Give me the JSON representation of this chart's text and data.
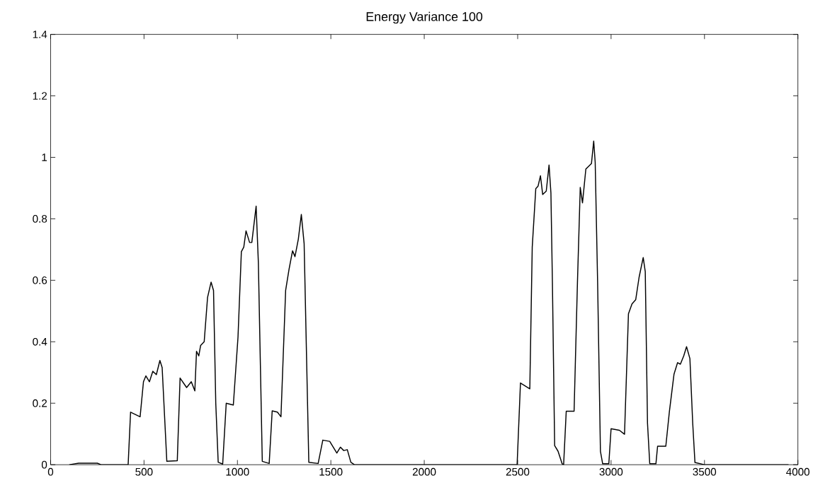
{
  "chart_data": {
    "type": "line",
    "title": "Energy Variance 100",
    "color": "#000000",
    "x": [
      100,
      150,
      250,
      270,
      415,
      428,
      479,
      497,
      510,
      529,
      547,
      566,
      585,
      597,
      622,
      678,
      693,
      728,
      753,
      772,
      781,
      793,
      803,
      822,
      840,
      859,
      872,
      884,
      897,
      921,
      940,
      978,
      1003,
      1021,
      1034,
      1046,
      1065,
      1077,
      1100,
      1112,
      1133,
      1170,
      1186,
      1214,
      1233,
      1258,
      1276,
      1295,
      1308,
      1326,
      1342,
      1357,
      1382,
      1432,
      1457,
      1494,
      1513,
      1532,
      1551,
      1569,
      1588,
      1607,
      1626,
      2497,
      2515,
      2565,
      2578,
      2597,
      2609,
      2622,
      2634,
      2653,
      2668,
      2678,
      2686,
      2698,
      2716,
      2738,
      2746,
      2760,
      2802,
      2820,
      2835,
      2847,
      2865,
      2895,
      2907,
      2915,
      2928,
      2943,
      2955,
      2988,
      3000,
      3045,
      3072,
      3093,
      3112,
      3132,
      3150,
      3172,
      3183,
      3195,
      3207,
      3240,
      3249,
      3293,
      3312,
      3337,
      3356,
      3371,
      3389,
      3404,
      3422,
      3437,
      3449,
      3500,
      3950
    ],
    "values": [
      0,
      0.005,
      0.005,
      0,
      0,
      0.171,
      0.156,
      0.27,
      0.289,
      0.27,
      0.304,
      0.293,
      0.339,
      0.316,
      0.011,
      0.013,
      0.282,
      0.251,
      0.27,
      0.24,
      0.369,
      0.354,
      0.388,
      0.4,
      0.544,
      0.594,
      0.567,
      0.2,
      0.008,
      0.002,
      0.2,
      0.194,
      0.415,
      0.693,
      0.708,
      0.761,
      0.723,
      0.723,
      0.841,
      0.658,
      0.011,
      0.004,
      0.175,
      0.171,
      0.156,
      0.567,
      0.635,
      0.696,
      0.677,
      0.734,
      0.814,
      0.719,
      0.008,
      0.004,
      0.08,
      0.076,
      0.057,
      0.038,
      0.057,
      0.046,
      0.049,
      0.008,
      0,
      0,
      0.266,
      0.247,
      0.708,
      0.898,
      0.906,
      0.94,
      0.879,
      0.89,
      0.975,
      0.884,
      0.592,
      0.062,
      0.044,
      0.003,
      0,
      0.174,
      0.174,
      0.592,
      0.902,
      0.852,
      0.962,
      0.98,
      1.053,
      0.984,
      0.592,
      0.044,
      0.003,
      0.003,
      0.117,
      0.112,
      0.099,
      0.491,
      0.523,
      0.537,
      0.61,
      0.674,
      0.628,
      0.135,
      0.003,
      0.003,
      0.06,
      0.06,
      0.172,
      0.295,
      0.332,
      0.327,
      0.354,
      0.384,
      0.345,
      0.135,
      0.007,
      0,
      0
    ],
    "xlim": [
      0,
      4000
    ],
    "xticks": [
      0,
      500,
      1000,
      1500,
      2000,
      2500,
      3000,
      3500,
      4000
    ],
    "ylim": [
      0,
      1.4
    ],
    "yticks": [
      0,
      0.2,
      0.4,
      0.6,
      0.8,
      1,
      1.2,
      1.4
    ]
  }
}
